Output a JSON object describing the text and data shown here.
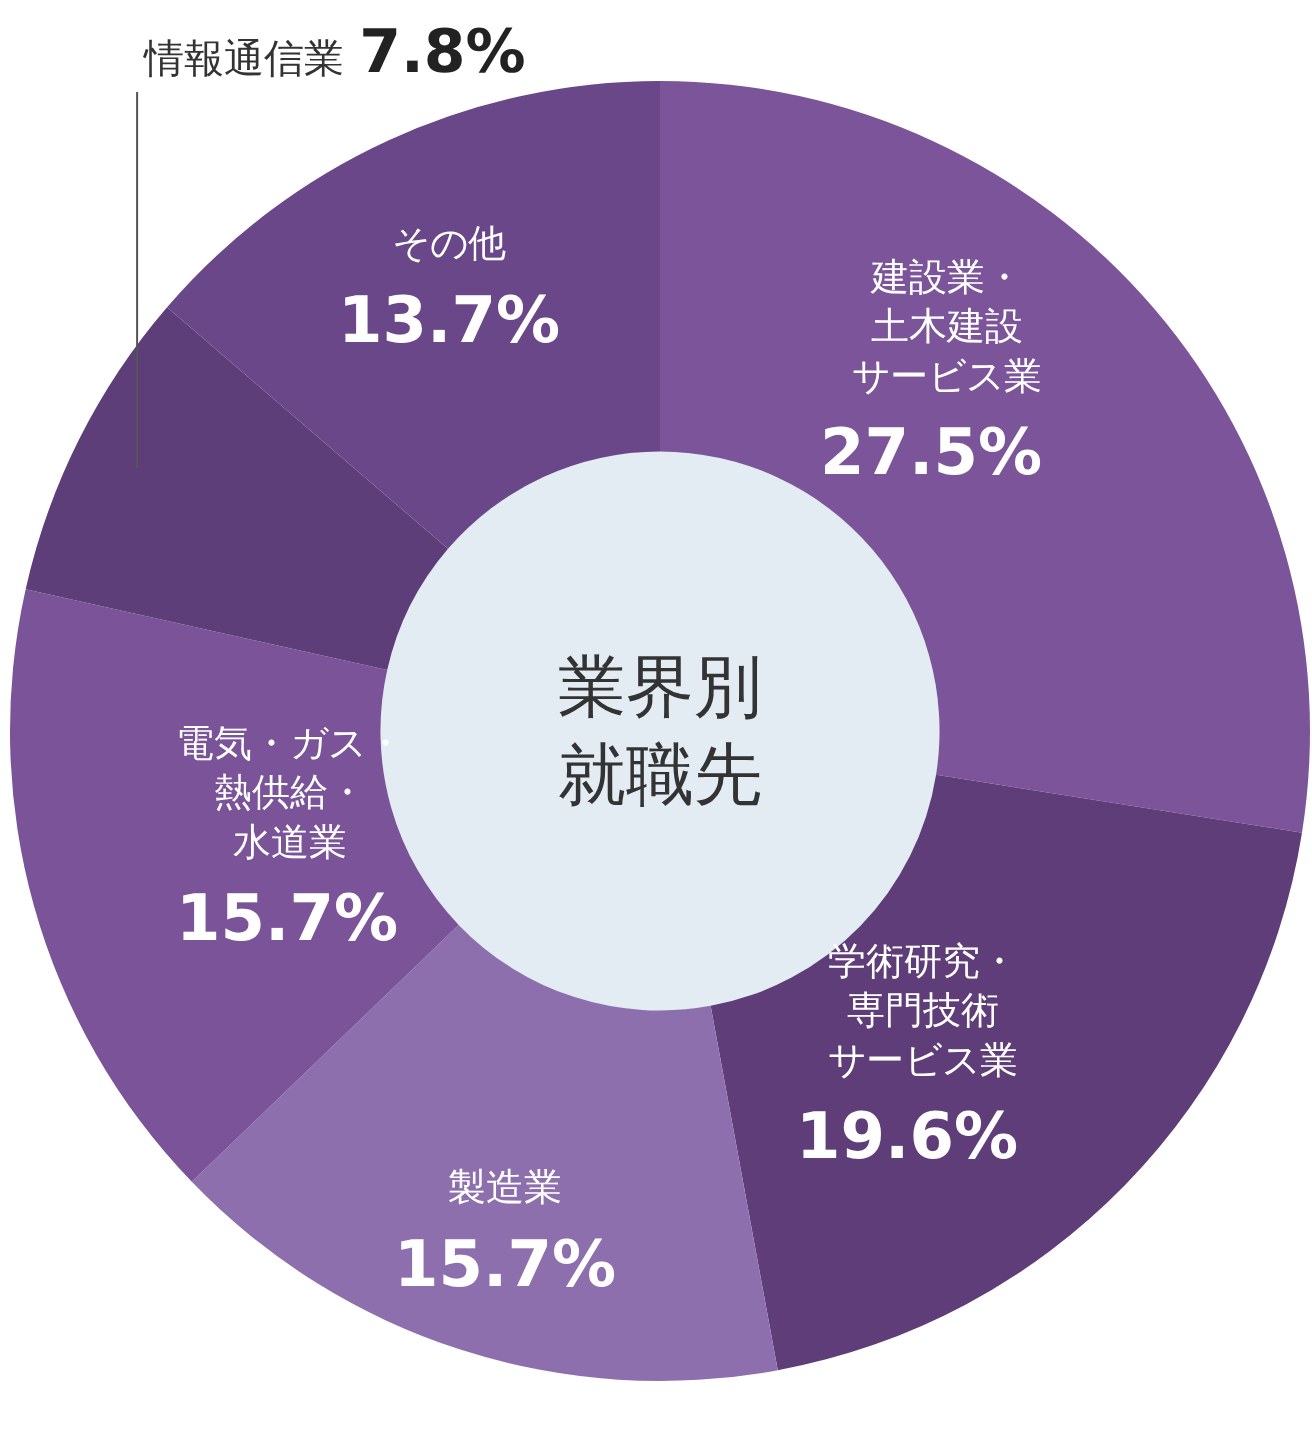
{
  "chart_data": {
    "type": "donut",
    "title": "業界別就職先",
    "categories": [
      "建設業・土木建設サービス業",
      "学術研究・専門技術サービス業",
      "製造業",
      "電気・ガス・熱供給・水道業",
      "情報通信業",
      "その他"
    ],
    "values": [
      27.5,
      19.6,
      15.7,
      15.7,
      7.8,
      13.7
    ],
    "value_labels": [
      "27.5%",
      "19.6%",
      "15.7%",
      "15.7%",
      "7.8%",
      "13.7%"
    ],
    "colors": [
      "#7b5499",
      "#5f3d78",
      "#8e6fae",
      "#7a5399",
      "#5e3e79",
      "#6a4788"
    ],
    "legend": false
  }
}
